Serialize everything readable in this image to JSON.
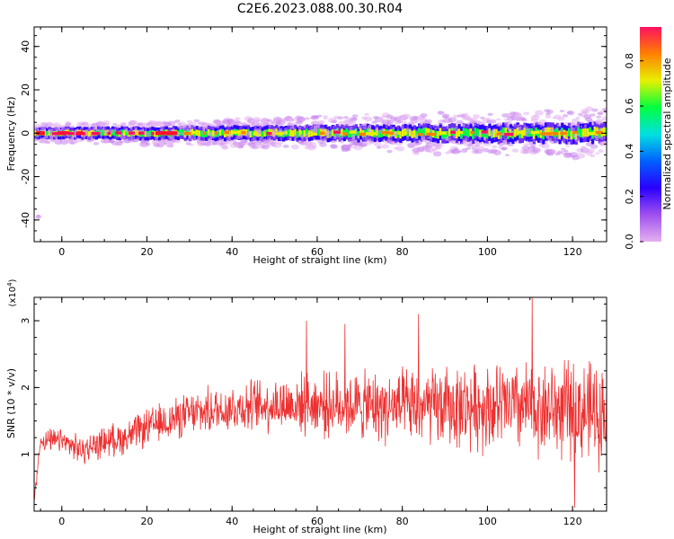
{
  "title": "C2E6.2023.088.00.30.R04",
  "chart_data": [
    {
      "type": "heatmap",
      "xlabel": "Height of straight line (km)",
      "ylabel": "Frequency (Hz)",
      "xlim": [
        -6.5,
        128
      ],
      "ylim": [
        -50,
        49
      ],
      "xticks": [
        0,
        20,
        40,
        60,
        80,
        100,
        120
      ],
      "yticks": [
        -40,
        -20,
        0,
        20,
        40
      ],
      "band_center_hz": 0,
      "band_core_halfwidth_hz": [
        1.2,
        2.0
      ],
      "band_halo_halfwidth_hz": [
        4,
        11
      ],
      "colorbar": {
        "label": "Normalized spectral amplitude",
        "range": [
          0.0,
          0.95
        ],
        "ticks": [
          0.0,
          0.2,
          0.4,
          0.6,
          0.8
        ],
        "colormap": [
          "#e4b0f0",
          "#a050f0",
          "#2a00ff",
          "#0060ff",
          "#00e0e0",
          "#00ff40",
          "#e8f000",
          "#ff8000",
          "#ff1060"
        ]
      },
      "trace_color": "#ee3030"
    },
    {
      "type": "line",
      "xlabel": "Height of straight line (km)",
      "ylabel": "SNR (10 * v/v)",
      "y_multiplier_label": "(x10",
      "y_multiplier_exp": "4",
      "y_multiplier_close": ")",
      "xlim": [
        -6.5,
        128
      ],
      "ylim": [
        0.15,
        3.35
      ],
      "xticks": [
        0,
        20,
        40,
        60,
        80,
        100,
        120
      ],
      "yticks": [
        1,
        2,
        3
      ],
      "color": "#ee3030",
      "trend_x": [
        -6.5,
        -5,
        0,
        5,
        10,
        15,
        20,
        30,
        40,
        50,
        60,
        70,
        80,
        90,
        100,
        110,
        120,
        128
      ],
      "trend_y": [
        0.3,
        1.2,
        1.2,
        1.05,
        1.2,
        1.25,
        1.4,
        1.6,
        1.7,
        1.75,
        1.75,
        1.72,
        1.7,
        1.7,
        1.72,
        1.7,
        1.65,
        1.6
      ],
      "peaks_x": [
        83.8,
        110.5,
        66.5,
        57.5,
        120.5
      ],
      "peaks_y": [
        3.1,
        3.35,
        2.95,
        3.0,
        0.2
      ]
    }
  ]
}
